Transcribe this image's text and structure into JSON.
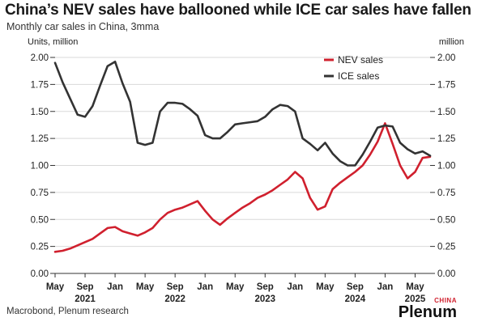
{
  "title": "China’s NEV sales have ballooned while ICE car sales have fallen",
  "subtitle": "Monthly car sales in China, 3mma",
  "source": "Macrobond, Plenum research",
  "logo": {
    "name": "Plenum",
    "tag": "CHINA"
  },
  "colors": {
    "nev": "#d0202e",
    "ice": "#333333",
    "grid": "#d9d9d9"
  },
  "chart_data": {
    "type": "line",
    "left_axis_label": "Units, million",
    "right_axis_label": "million",
    "ylim": [
      0,
      2
    ],
    "yticks": [
      "0.00",
      "0.25",
      "0.50",
      "0.75",
      "1.00",
      "1.25",
      "1.50",
      "1.75",
      "2.00"
    ],
    "ytick_values": [
      0,
      0.25,
      0.5,
      0.75,
      1.0,
      1.25,
      1.5,
      1.75,
      2.0
    ],
    "grid": "horizontal",
    "legend_position": "top-right",
    "x_start": "2021-05",
    "x_end": "2025-07",
    "xticks": [
      {
        "month": "May",
        "date": "2021-05"
      },
      {
        "month": "Sep",
        "date": "2021-09"
      },
      {
        "month": "Jan",
        "date": "2022-01"
      },
      {
        "month": "May",
        "date": "2022-05"
      },
      {
        "month": "Sep",
        "date": "2022-09"
      },
      {
        "month": "Jan",
        "date": "2023-01"
      },
      {
        "month": "May",
        "date": "2023-05"
      },
      {
        "month": "Sep",
        "date": "2023-09"
      },
      {
        "month": "Jan",
        "date": "2024-01"
      },
      {
        "month": "May",
        "date": "2024-05"
      },
      {
        "month": "Sep",
        "date": "2024-09"
      },
      {
        "month": "Jan",
        "date": "2025-01"
      },
      {
        "month": "May",
        "date": "2025-05"
      }
    ],
    "year_labels": [
      {
        "label": "2021",
        "date": "2021-09"
      },
      {
        "label": "2022",
        "date": "2022-09"
      },
      {
        "label": "2023",
        "date": "2023-09"
      },
      {
        "label": "2024",
        "date": "2024-09"
      },
      {
        "label": "2025",
        "date": "2025-05"
      }
    ],
    "x": [
      "2021-05",
      "2021-06",
      "2021-07",
      "2021-08",
      "2021-09",
      "2021-10",
      "2021-11",
      "2021-12",
      "2022-01",
      "2022-02",
      "2022-03",
      "2022-04",
      "2022-05",
      "2022-06",
      "2022-07",
      "2022-08",
      "2022-09",
      "2022-10",
      "2022-11",
      "2022-12",
      "2023-01",
      "2023-02",
      "2023-03",
      "2023-04",
      "2023-05",
      "2023-06",
      "2023-07",
      "2023-08",
      "2023-09",
      "2023-10",
      "2023-11",
      "2023-12",
      "2024-01",
      "2024-02",
      "2024-03",
      "2024-04",
      "2024-05",
      "2024-06",
      "2024-07",
      "2024-08",
      "2024-09",
      "2024-10",
      "2024-11",
      "2024-12",
      "2025-01",
      "2025-02",
      "2025-03",
      "2025-04",
      "2025-05",
      "2025-06",
      "2025-07"
    ],
    "series": [
      {
        "name": "NEV sales",
        "color": "#d0202e",
        "values": [
          0.2,
          0.21,
          0.23,
          0.26,
          0.29,
          0.32,
          0.37,
          0.42,
          0.43,
          0.39,
          0.37,
          0.35,
          0.38,
          0.42,
          0.5,
          0.56,
          0.59,
          0.61,
          0.64,
          0.67,
          0.58,
          0.5,
          0.45,
          0.51,
          0.56,
          0.61,
          0.65,
          0.7,
          0.73,
          0.77,
          0.82,
          0.87,
          0.94,
          0.88,
          0.7,
          0.59,
          0.62,
          0.78,
          0.84,
          0.89,
          0.94,
          1.0,
          1.1,
          1.22,
          1.39,
          1.2,
          1.0,
          0.88,
          0.94,
          1.07,
          1.08
        ]
      },
      {
        "name": "ICE sales",
        "color": "#333333",
        "values": [
          1.95,
          1.77,
          1.62,
          1.47,
          1.45,
          1.55,
          1.74,
          1.92,
          1.96,
          1.76,
          1.59,
          1.21,
          1.19,
          1.21,
          1.5,
          1.58,
          1.58,
          1.57,
          1.52,
          1.46,
          1.28,
          1.25,
          1.25,
          1.31,
          1.38,
          1.39,
          1.4,
          1.41,
          1.45,
          1.52,
          1.56,
          1.55,
          1.5,
          1.25,
          1.2,
          1.14,
          1.21,
          1.11,
          1.04,
          1.0,
          1.0,
          1.1,
          1.22,
          1.35,
          1.37,
          1.36,
          1.21,
          1.15,
          1.11,
          1.13,
          1.09
        ]
      }
    ]
  }
}
